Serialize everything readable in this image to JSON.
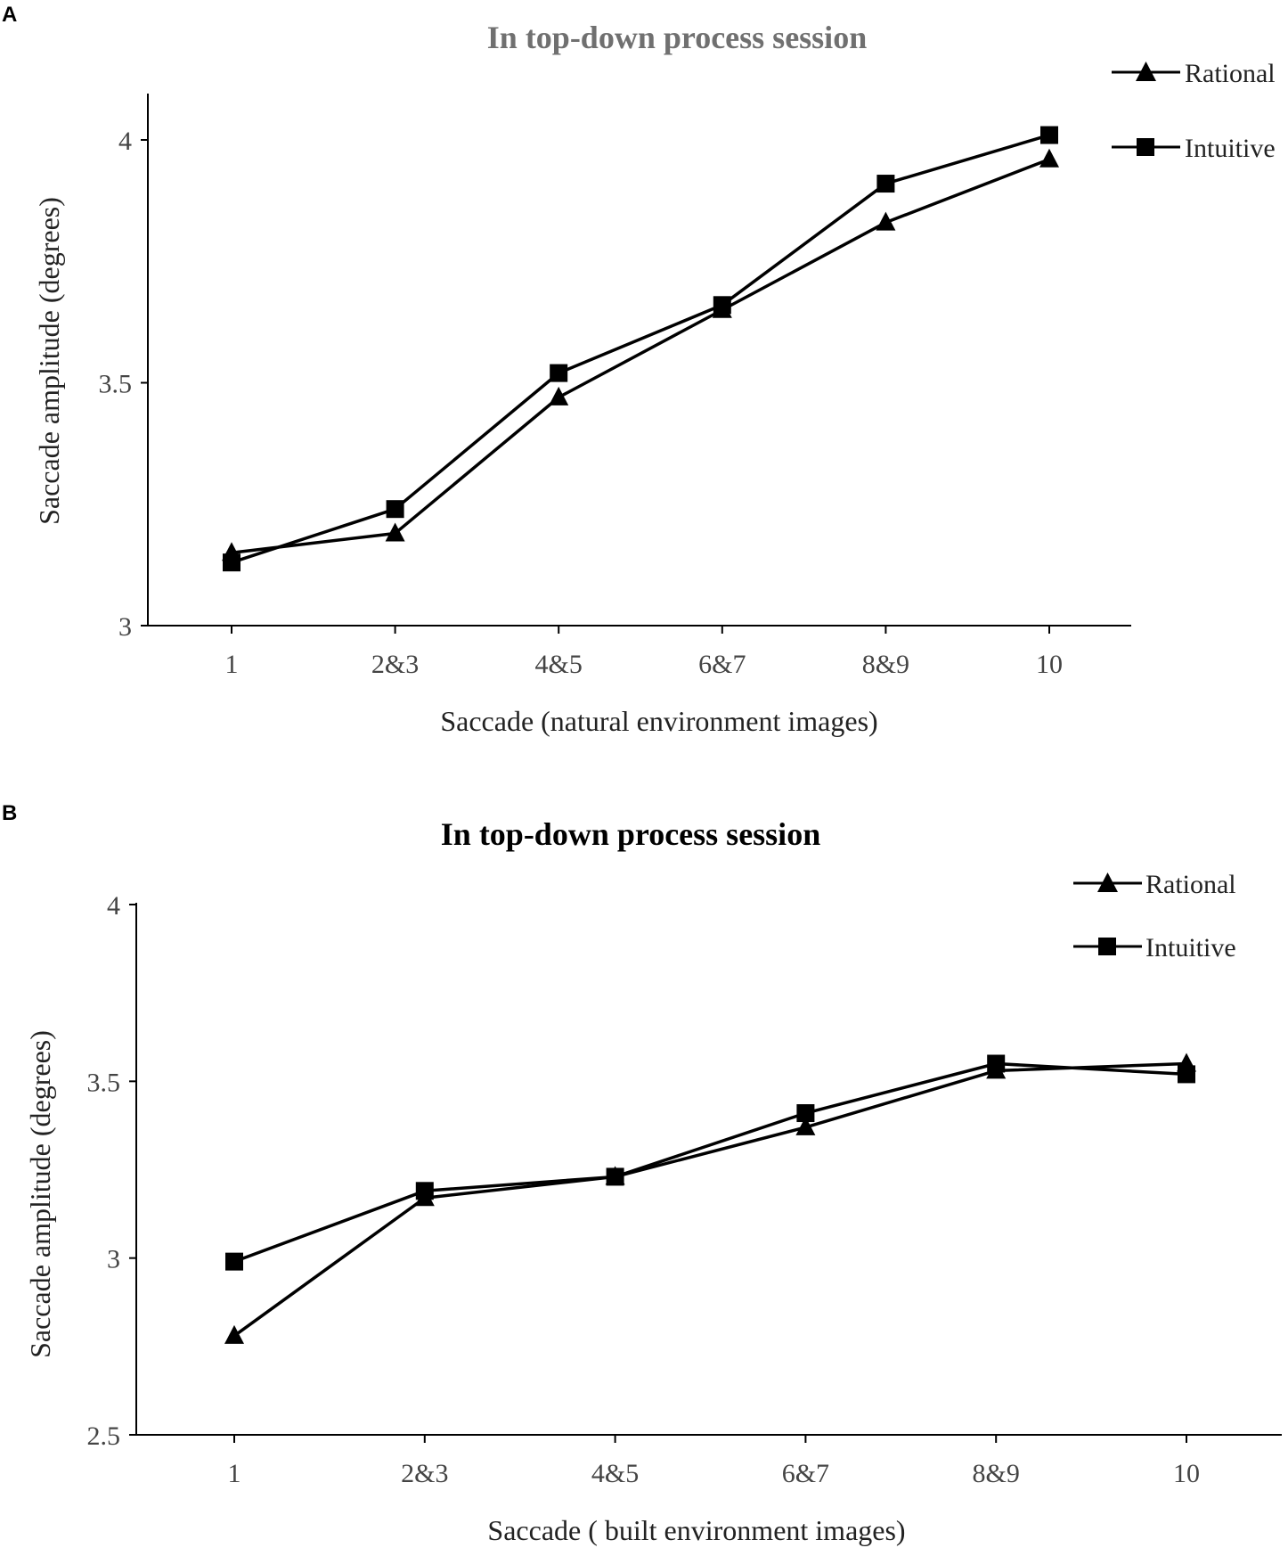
{
  "chart_data": [
    {
      "panel_label": "A",
      "type": "line",
      "title": "In top-down process session",
      "xlabel": "Saccade (natural environment images)",
      "ylabel": "Saccade amplitude (degrees)",
      "categories": [
        "1",
        "2&3",
        "4&5",
        "6&7",
        "8&9",
        "10"
      ],
      "ylim": [
        3,
        4.1
      ],
      "yticks": [
        3,
        3.5,
        4
      ],
      "ytick_labels": [
        "3",
        "3.5",
        "4"
      ],
      "legend_position": "top-right",
      "series": [
        {
          "name": "Rational",
          "marker": "triangle",
          "values": [
            3.15,
            3.19,
            3.47,
            3.65,
            3.83,
            3.96
          ]
        },
        {
          "name": "Intuitive",
          "marker": "square",
          "values": [
            3.13,
            3.24,
            3.52,
            3.66,
            3.91,
            4.01
          ]
        }
      ],
      "colors": {
        "title": "#707070",
        "lines": "#000000",
        "text": "#222222"
      }
    },
    {
      "panel_label": "B",
      "type": "line",
      "title": "In top-down process session",
      "xlabel": "Saccade ( built environment images)",
      "ylabel": "Saccade amplitude (degrees)",
      "categories": [
        "1",
        "2&3",
        "4&5",
        "6&7",
        "8&9",
        "10"
      ],
      "ylim": [
        2.5,
        4
      ],
      "yticks": [
        2.5,
        3,
        3.5,
        4
      ],
      "ytick_labels": [
        "2.5",
        "3",
        "3.5",
        "4"
      ],
      "legend_position": "top-right",
      "series": [
        {
          "name": "Rational",
          "marker": "triangle",
          "values": [
            2.78,
            3.17,
            3.23,
            3.37,
            3.53,
            3.55
          ]
        },
        {
          "name": "Intuitive",
          "marker": "square",
          "values": [
            2.99,
            3.19,
            3.23,
            3.41,
            3.55,
            3.52
          ]
        }
      ],
      "colors": {
        "title": "#000000",
        "lines": "#000000",
        "text": "#222222"
      }
    }
  ]
}
